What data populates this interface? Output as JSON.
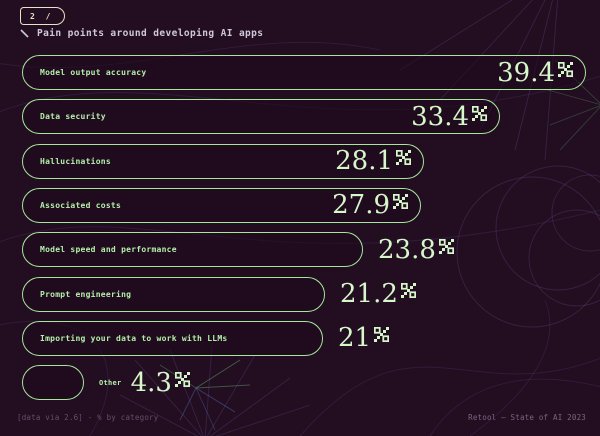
{
  "page": {
    "background": "#220e20",
    "accent_green": "#a5e79b",
    "label_green": "#b5efab",
    "value_green": "#d6f7c9",
    "badge_color": "#e7e3c5",
    "title_color": "#cfc7da"
  },
  "header": {
    "badge": "2 /",
    "title": "Pain points around developing AI apps"
  },
  "footer": {
    "left": "[data via 2.6] - % by category",
    "right": "Retool – State of AI 2023"
  },
  "chart_data": {
    "type": "bar",
    "orientation": "horizontal",
    "title": "Pain points around developing AI apps",
    "unit": "%",
    "categories": [
      "Model output accuracy",
      "Data security",
      "Hallucinations",
      "Associated costs",
      "Model speed and performance",
      "Prompt engineering",
      "Importing your data to work with LLMs",
      "Other"
    ],
    "values": [
      39.4,
      33.4,
      28.1,
      27.9,
      23.8,
      21.2,
      21,
      4.3
    ],
    "value_labels": [
      "39.4",
      "33.4",
      "28.1",
      "27.9",
      "23.8",
      "21.2",
      "21",
      "4.3"
    ],
    "value_inside": [
      true,
      true,
      true,
      true,
      false,
      false,
      false,
      false
    ],
    "label_outside": [
      false,
      false,
      false,
      false,
      false,
      false,
      false,
      true
    ],
    "xlim": [
      0,
      39.4
    ],
    "grid": false,
    "legend": false
  }
}
